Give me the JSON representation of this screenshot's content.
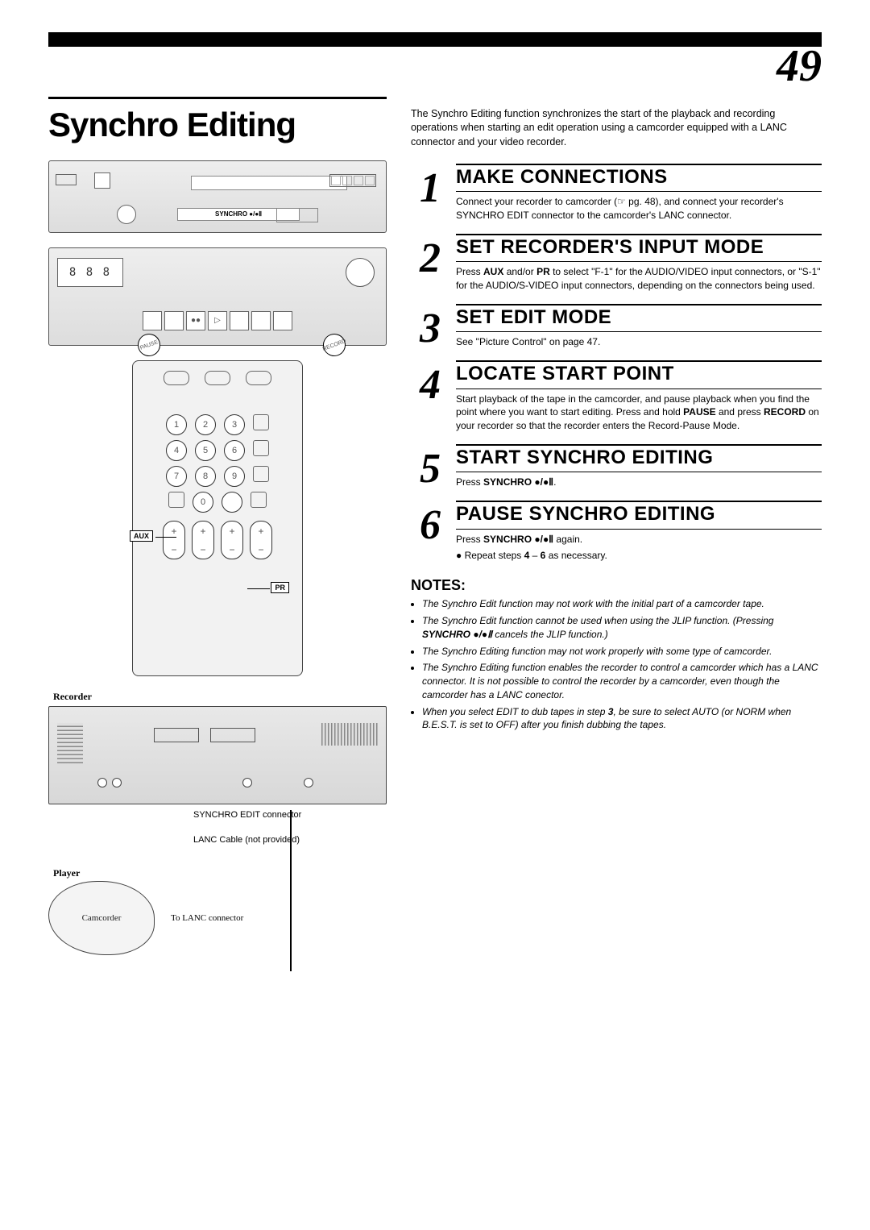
{
  "page_number": "49",
  "main_title": "Synchro Editing",
  "intro": "The Synchro Editing function synchronizes the start of the playback and recording operations when starting an edit operation using a camcorder equipped with a LANC connector and your video recorder.",
  "steps": [
    {
      "n": "1",
      "title": "MAKE CONNECTIONS",
      "text": "Connect your recorder to camcorder (☞ pg. 48), and connect your recorder's SYNCHRO EDIT connector to the camcorder's LANC connector."
    },
    {
      "n": "2",
      "title": "SET RECORDER'S INPUT MODE",
      "text": "Press <b>AUX</b> and/or <b>PR</b> to select \"F-1\" for the AUDIO/VIDEO input connectors, or \"S-1\" for the AUDIO/S-VIDEO input connectors, depending on the connectors being used."
    },
    {
      "n": "3",
      "title": "SET EDIT MODE",
      "text": "See \"Picture Control\" on page 47."
    },
    {
      "n": "4",
      "title": "LOCATE START POINT",
      "text": "Start playback of the tape in the camcorder, and pause playback when you find the point where you want to start editing. Press and hold <b>PAUSE</b> and press <b>RECORD</b> on your recorder so that the recorder enters the Record-Pause Mode."
    },
    {
      "n": "5",
      "title": "START SYNCHRO EDITING",
      "text": "Press <b>SYNCHRO ●/●Ⅱ</b>."
    },
    {
      "n": "6",
      "title": "PAUSE SYNCHRO EDITING",
      "text": "Press <b>SYNCHRO ●/●Ⅱ</b> again.",
      "bullet": "Repeat steps <b>4</b> – <b>6</b> as necessary."
    }
  ],
  "notes_heading": "NOTES:",
  "notes": [
    "The Synchro Edit function may not work with the initial part of a camcorder tape.",
    "The Synchro Edit function cannot be used when using the JLIP function.  (Pressing <b>SYNCHRO ●/●Ⅱ</b> cancels the JLIP function.)",
    "The Synchro Editing function may not work properly with some type of camcorder.",
    "The Synchro Editing function enables the recorder to control a camcorder which has a LANC connector. It is not possible to control the recorder by a camcorder, even though the camcorder has a LANC conector.",
    "When you select EDIT to dub tapes in step <b>3</b>, be sure to select AUTO (or NORM when B.E.S.T. is set to OFF) after you finish dubbing the tapes."
  ],
  "diagram": {
    "synchro_tray": "SYNCHRO ●/●Ⅱ",
    "lcd": "8 8 8",
    "hand_pause": "PAUSE",
    "hand_record": "RECORD",
    "remote_aux": "AUX",
    "remote_pr": "PR",
    "remote_nums": [
      "1",
      "2",
      "3",
      "4",
      "5",
      "6",
      "7",
      "8",
      "9",
      "0"
    ],
    "recorder_label": "Recorder",
    "player_label": "Player",
    "camcorder_label": "Camcorder",
    "synchro_conn": "SYNCHRO EDIT connector",
    "lanc_cable": "LANC Cable (not provided)",
    "to_lanc": "To LANC connector"
  }
}
